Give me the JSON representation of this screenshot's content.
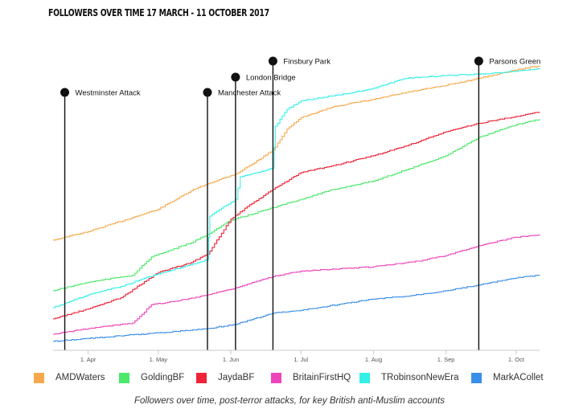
{
  "chart_data": {
    "type": "line",
    "title": "FOLLOWERS OVER TIME  17 MARCH - 11 OCTOBER 2017",
    "caption": "Followers over time, post-terror attacks, for key British anti-Muslim accounts",
    "x_start": "2017-03-17",
    "x_end": "2017-10-11",
    "x_ticks": [
      {
        "date": "2017-04-01",
        "label": "1. Apr"
      },
      {
        "date": "2017-05-01",
        "label": "1. May"
      },
      {
        "date": "2017-06-01",
        "label": "1. Jun"
      },
      {
        "date": "2017-07-01",
        "label": "1. Jul"
      },
      {
        "date": "2017-08-01",
        "label": "1. Aug"
      },
      {
        "date": "2017-09-01",
        "label": "1. Sep"
      },
      {
        "date": "2017-10-01",
        "label": "1. Oct"
      }
    ],
    "y_axis": {
      "labels_shown": false,
      "relative_scale": [
        0,
        100
      ]
    },
    "grid": false,
    "legend_position": "bottom",
    "events": [
      {
        "date": "2017-03-22",
        "label": "Westminster Attack",
        "level": 4
      },
      {
        "date": "2017-05-22",
        "label": "Manchester Attack",
        "level": 4
      },
      {
        "date": "2017-06-03",
        "label": "London Bridge",
        "level": 2
      },
      {
        "date": "2017-06-19",
        "label": "Finsbury Park",
        "level": 1
      },
      {
        "date": "2017-09-15",
        "label": "Parsons Green",
        "level": 1
      }
    ],
    "series": [
      {
        "name": "AMDWaters",
        "color": "#F5A94D",
        "points": [
          [
            "2017-03-17",
            37.5
          ],
          [
            "2017-04-01",
            40.5
          ],
          [
            "2017-04-20",
            45.5
          ],
          [
            "2017-05-01",
            48.5
          ],
          [
            "2017-05-15",
            55
          ],
          [
            "2017-05-22",
            57.5
          ],
          [
            "2017-06-03",
            61
          ],
          [
            "2017-06-10",
            64.5
          ],
          [
            "2017-06-19",
            69.5
          ],
          [
            "2017-06-25",
            77
          ],
          [
            "2017-07-01",
            81
          ],
          [
            "2017-07-15",
            85
          ],
          [
            "2017-08-01",
            87.5
          ],
          [
            "2017-08-15",
            90
          ],
          [
            "2017-09-01",
            92.5
          ],
          [
            "2017-09-15",
            95
          ],
          [
            "2017-10-01",
            98
          ],
          [
            "2017-10-11",
            99.5
          ]
        ]
      },
      {
        "name": "GoldingBF",
        "color": "#4CE86A",
        "points": [
          [
            "2017-03-17",
            19.5
          ],
          [
            "2017-04-01",
            22.5
          ],
          [
            "2017-04-20",
            25
          ],
          [
            "2017-04-28",
            31.5
          ],
          [
            "2017-05-15",
            36.5
          ],
          [
            "2017-05-22",
            39.5
          ],
          [
            "2017-06-01",
            44.5
          ],
          [
            "2017-06-19",
            49
          ],
          [
            "2017-07-01",
            52
          ],
          [
            "2017-07-15",
            55.5
          ],
          [
            "2017-08-01",
            58.5
          ],
          [
            "2017-08-15",
            62.5
          ],
          [
            "2017-09-01",
            67.5
          ],
          [
            "2017-09-15",
            74
          ],
          [
            "2017-10-01",
            78.5
          ],
          [
            "2017-10-11",
            80.5
          ]
        ]
      },
      {
        "name": "JaydaBF",
        "color": "#EE2238",
        "points": [
          [
            "2017-03-17",
            9.5
          ],
          [
            "2017-04-01",
            13
          ],
          [
            "2017-04-15",
            17
          ],
          [
            "2017-05-01",
            26
          ],
          [
            "2017-05-15",
            29.5
          ],
          [
            "2017-05-22",
            32.5
          ],
          [
            "2017-06-01",
            45
          ],
          [
            "2017-06-10",
            50.5
          ],
          [
            "2017-06-19",
            55.5
          ],
          [
            "2017-07-01",
            61.5
          ],
          [
            "2017-07-15",
            64
          ],
          [
            "2017-08-01",
            67.5
          ],
          [
            "2017-08-15",
            71
          ],
          [
            "2017-09-01",
            76
          ],
          [
            "2017-09-15",
            79
          ],
          [
            "2017-10-01",
            81.5
          ],
          [
            "2017-10-11",
            83
          ]
        ]
      },
      {
        "name": "BritainFirstHQ",
        "color": "#EE44BB",
        "points": [
          [
            "2017-03-17",
            4
          ],
          [
            "2017-04-01",
            6
          ],
          [
            "2017-04-20",
            8
          ],
          [
            "2017-04-28",
            14.5
          ],
          [
            "2017-05-10",
            16
          ],
          [
            "2017-05-22",
            18
          ],
          [
            "2017-06-03",
            20.5
          ],
          [
            "2017-06-19",
            24.5
          ],
          [
            "2017-07-01",
            26.5
          ],
          [
            "2017-08-01",
            28
          ],
          [
            "2017-08-20",
            30
          ],
          [
            "2017-09-01",
            32
          ],
          [
            "2017-09-15",
            35.5
          ],
          [
            "2017-10-01",
            38.5
          ],
          [
            "2017-10-11",
            39.5
          ]
        ]
      },
      {
        "name": "TRobinsonNewEra",
        "color": "#33F0E8",
        "points": [
          [
            "2017-03-17",
            13.5
          ],
          [
            "2017-04-01",
            18
          ],
          [
            "2017-04-15",
            21
          ],
          [
            "2017-05-01",
            25.5
          ],
          [
            "2017-05-22",
            30.5
          ],
          [
            "2017-05-23",
            46
          ],
          [
            "2017-06-03",
            52
          ],
          [
            "2017-06-05",
            60
          ],
          [
            "2017-06-19",
            63
          ],
          [
            "2017-06-20",
            78
          ],
          [
            "2017-06-25",
            84
          ],
          [
            "2017-07-01",
            87
          ],
          [
            "2017-07-20",
            89.5
          ],
          [
            "2017-08-01",
            91.5
          ],
          [
            "2017-08-15",
            95
          ],
          [
            "2017-09-01",
            96
          ],
          [
            "2017-09-15",
            96.5
          ],
          [
            "2017-10-01",
            97.5
          ],
          [
            "2017-10-11",
            98.5
          ]
        ]
      },
      {
        "name": "MarkACollet",
        "color": "#3B8EE8",
        "points": [
          [
            "2017-03-17",
            1.5
          ],
          [
            "2017-04-01",
            2.5
          ],
          [
            "2017-05-01",
            4.5
          ],
          [
            "2017-05-22",
            6
          ],
          [
            "2017-06-03",
            7.5
          ],
          [
            "2017-06-19",
            11.5
          ],
          [
            "2017-07-01",
            12.5
          ],
          [
            "2017-08-01",
            16.5
          ],
          [
            "2017-08-15",
            17.5
          ],
          [
            "2017-09-01",
            19.5
          ],
          [
            "2017-09-15",
            21.5
          ],
          [
            "2017-10-01",
            24
          ],
          [
            "2017-10-11",
            25
          ]
        ]
      }
    ]
  }
}
